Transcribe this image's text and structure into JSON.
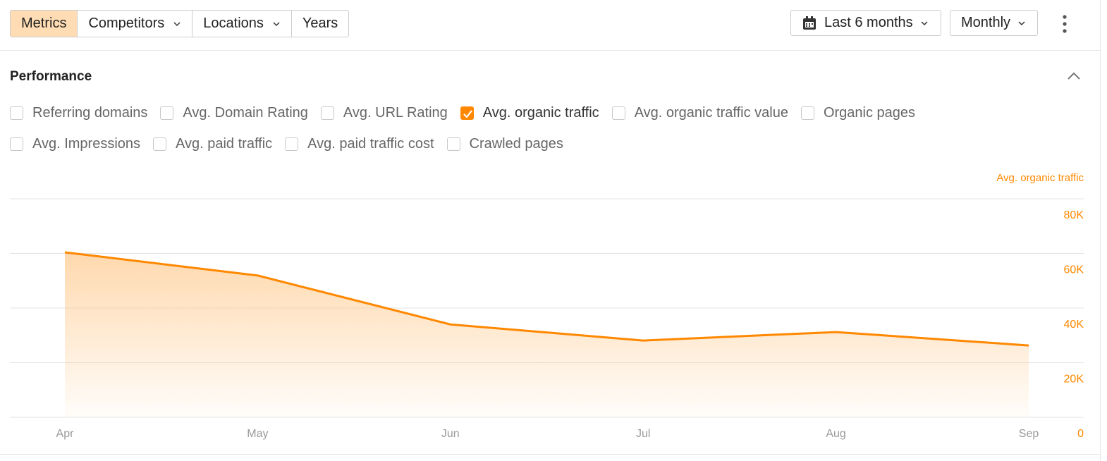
{
  "toolbar": {
    "tabs": [
      {
        "label": "Metrics",
        "active": true,
        "dropdown": false
      },
      {
        "label": "Competitors",
        "active": false,
        "dropdown": true
      },
      {
        "label": "Locations",
        "active": false,
        "dropdown": true
      },
      {
        "label": "Years",
        "active": false,
        "dropdown": false
      }
    ],
    "date_range": "Last 6 months",
    "interval": "Monthly"
  },
  "panel": {
    "title": "Performance"
  },
  "metrics": [
    {
      "label": "Referring domains",
      "checked": false
    },
    {
      "label": "Avg. Domain Rating",
      "checked": false
    },
    {
      "label": "Avg. URL Rating",
      "checked": false
    },
    {
      "label": "Avg. organic traffic",
      "checked": true
    },
    {
      "label": "Avg. organic traffic value",
      "checked": false
    },
    {
      "label": "Organic pages",
      "checked": false
    },
    {
      "label": "Avg. Impressions",
      "checked": false
    },
    {
      "label": "Avg. paid traffic",
      "checked": false
    },
    {
      "label": "Avg. paid traffic cost",
      "checked": false
    },
    {
      "label": "Crawled pages",
      "checked": false
    }
  ],
  "chart_data": {
    "type": "area",
    "y_label": "Avg. organic traffic",
    "categories": [
      "Apr",
      "May",
      "Jun",
      "Jul",
      "Aug",
      "Sep"
    ],
    "values": [
      60400,
      51900,
      34000,
      28100,
      31200,
      26300
    ],
    "color": "#ff8800",
    "ylim": [
      0,
      80000
    ],
    "yticks": [
      0,
      {
        "value": 20000,
        "label": "20K"
      },
      {
        "value": 40000,
        "label": "40K"
      },
      {
        "value": 60000,
        "label": "60K"
      },
      {
        "value": 80000,
        "label": "80K"
      }
    ],
    "grid": true
  }
}
